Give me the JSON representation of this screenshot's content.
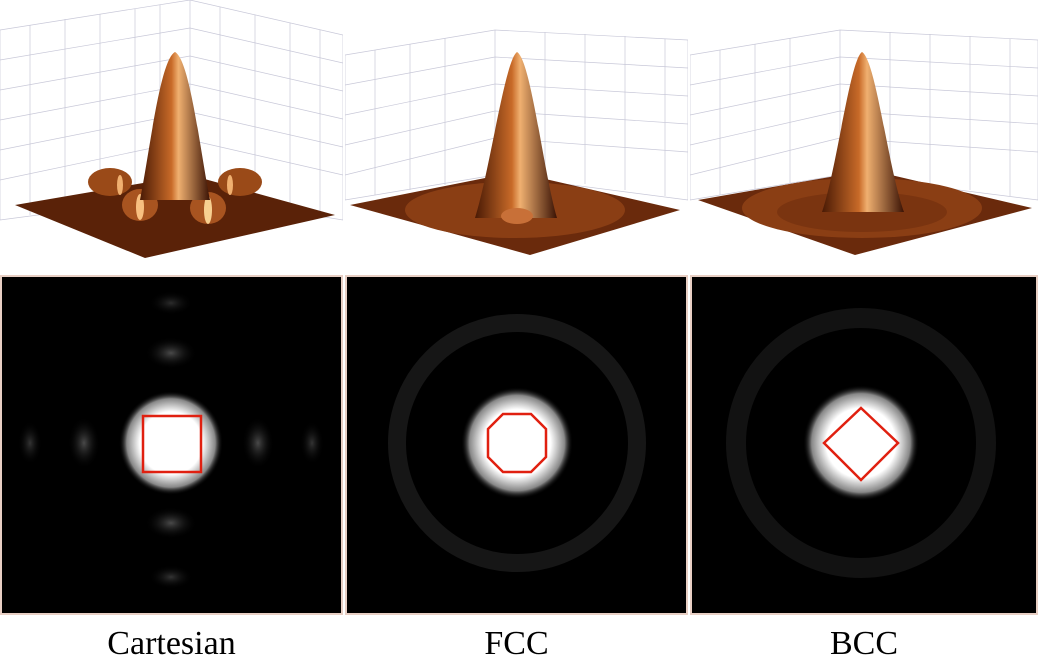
{
  "figure": {
    "columns": [
      {
        "id": "cartesian",
        "caption": "Cartesian",
        "passband_shape": "square"
      },
      {
        "id": "fcc",
        "caption": "FCC",
        "passband_shape": "octagon"
      },
      {
        "id": "bcc",
        "caption": "BCC",
        "passband_shape": "diamond"
      }
    ],
    "colors": {
      "surface": "#8a3a10",
      "surface_highlight": "#f0b070",
      "grid": "#c8c8d8",
      "passband_outline": "#e02010",
      "spectrum_background": "#000000"
    }
  }
}
